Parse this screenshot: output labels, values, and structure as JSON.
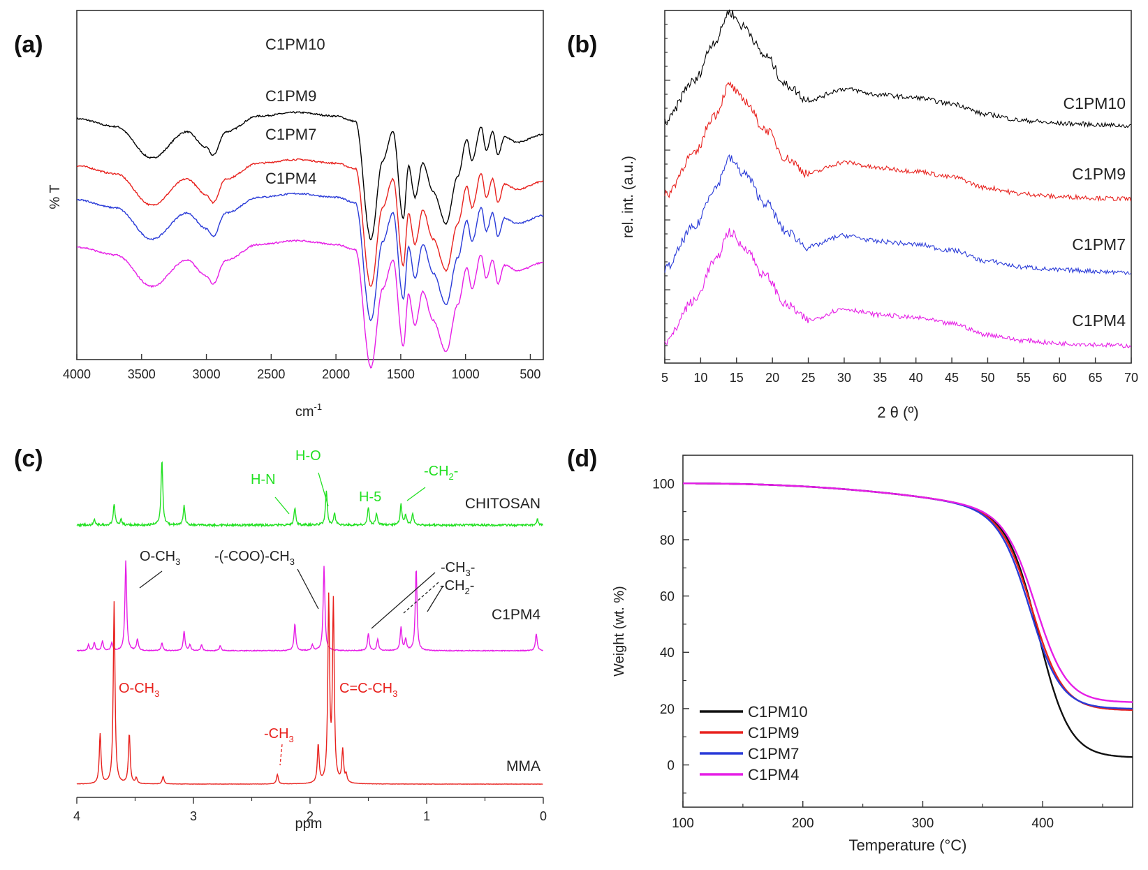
{
  "panels": [
    {
      "id": "a",
      "label": "(a)"
    },
    {
      "id": "b",
      "label": "(b)"
    },
    {
      "id": "c",
      "label": "(c)"
    },
    {
      "id": "d",
      "label": "(d)"
    }
  ],
  "chart_data": [
    {
      "panel": "(a)",
      "type": "line",
      "title": "",
      "xlabel": "cm",
      "xlabel_sup": "-1",
      "ylabel": "% T",
      "xlim": [
        4000,
        400
      ],
      "xticks": [
        4000,
        3500,
        3000,
        2500,
        2000,
        1500,
        1000,
        500
      ],
      "yticks_labeled": false,
      "offset_per_series": 0.9,
      "series": [
        {
          "name": "C1PM10",
          "color": "#000000",
          "offset": 3.0
        },
        {
          "name": "C1PM9",
          "color": "#e8221e",
          "offset": 2.1
        },
        {
          "name": "C1PM7",
          "color": "#2a3bd8",
          "offset": 1.45
        },
        {
          "name": "C1PM4",
          "color": "#e61ee6",
          "offset": 0.55
        }
      ],
      "baseline_points": [
        {
          "x": 4000,
          "y": 1.0
        },
        {
          "x": 3700,
          "y": 0.85
        },
        {
          "x": 3420,
          "y": 0.25
        },
        {
          "x": 3150,
          "y": 0.75
        },
        {
          "x": 3000,
          "y": 0.45
        },
        {
          "x": 2950,
          "y": 0.3
        },
        {
          "x": 2850,
          "y": 0.75
        },
        {
          "x": 2600,
          "y": 1.05
        },
        {
          "x": 2300,
          "y": 1.12
        },
        {
          "x": 2000,
          "y": 1.05
        },
        {
          "x": 1850,
          "y": 0.95
        },
        {
          "x": 1730,
          "y": -1.3
        },
        {
          "x": 1640,
          "y": 0.2
        },
        {
          "x": 1560,
          "y": 0.75
        },
        {
          "x": 1480,
          "y": -0.9
        },
        {
          "x": 1440,
          "y": 0.1
        },
        {
          "x": 1390,
          "y": -0.5
        },
        {
          "x": 1330,
          "y": 0.15
        },
        {
          "x": 1250,
          "y": -0.4
        },
        {
          "x": 1150,
          "y": -1.0
        },
        {
          "x": 1060,
          "y": -0.1
        },
        {
          "x": 990,
          "y": 0.6
        },
        {
          "x": 950,
          "y": 0.2
        },
        {
          "x": 880,
          "y": 0.85
        },
        {
          "x": 840,
          "y": 0.4
        },
        {
          "x": 790,
          "y": 0.75
        },
        {
          "x": 750,
          "y": 0.3
        },
        {
          "x": 700,
          "y": 0.65
        },
        {
          "x": 600,
          "y": 0.55
        },
        {
          "x": 400,
          "y": 0.7
        }
      ]
    },
    {
      "panel": "(b)",
      "type": "line",
      "title": "",
      "xlabel": "2 θ (º)",
      "ylabel": "rel. int. (a.u.)",
      "xlim": [
        5,
        70
      ],
      "xticks": [
        5,
        10,
        15,
        20,
        25,
        30,
        35,
        40,
        45,
        50,
        55,
        60,
        65,
        70
      ],
      "yticks_labeled": false,
      "series": [
        {
          "name": "C1PM10",
          "color": "#000000",
          "offset": 3.0
        },
        {
          "name": "C1PM9",
          "color": "#e8221e",
          "offset": 2.0
        },
        {
          "name": "C1PM7",
          "color": "#2a3bd8",
          "offset": 1.0
        },
        {
          "name": "C1PM4",
          "color": "#e61ee6",
          "offset": 0.0
        }
      ],
      "profile_points": [
        {
          "x": 5,
          "y": 0.05
        },
        {
          "x": 9,
          "y": 0.6
        },
        {
          "x": 12,
          "y": 1.15
        },
        {
          "x": 14,
          "y": 1.55
        },
        {
          "x": 16,
          "y": 1.35
        },
        {
          "x": 19,
          "y": 0.95
        },
        {
          "x": 22,
          "y": 0.55
        },
        {
          "x": 25,
          "y": 0.35
        },
        {
          "x": 30,
          "y": 0.5
        },
        {
          "x": 35,
          "y": 0.42
        },
        {
          "x": 40,
          "y": 0.38
        },
        {
          "x": 45,
          "y": 0.3
        },
        {
          "x": 50,
          "y": 0.15
        },
        {
          "x": 55,
          "y": 0.07
        },
        {
          "x": 60,
          "y": 0.03
        },
        {
          "x": 70,
          "y": 0.0
        }
      ]
    },
    {
      "panel": "(c)",
      "type": "line",
      "title": "",
      "xlabel": "ppm",
      "ylabel": "",
      "xlim": [
        4,
        0
      ],
      "xticks": [
        4,
        3,
        2,
        1,
        0
      ],
      "series": [
        {
          "name": "CHITOSAN",
          "color": "#22e022",
          "offset": 0.0,
          "peaks": [
            {
              "x": 3.85,
              "h": 0.3
            },
            {
              "x": 3.68,
              "h": 1.1
            },
            {
              "x": 3.62,
              "h": 0.3
            },
            {
              "x": 3.27,
              "h": 3.4
            },
            {
              "x": 3.08,
              "h": 1.0
            },
            {
              "x": 2.13,
              "h": 0.9
            },
            {
              "x": 1.86,
              "h": 1.8
            },
            {
              "x": 1.79,
              "h": 0.6
            },
            {
              "x": 1.5,
              "h": 0.9
            },
            {
              "x": 1.43,
              "h": 0.6
            },
            {
              "x": 1.22,
              "h": 1.1
            },
            {
              "x": 1.18,
              "h": 0.5
            },
            {
              "x": 1.12,
              "h": 0.6
            },
            {
              "x": 0.05,
              "h": 0.3
            }
          ]
        },
        {
          "name": "C1PM4",
          "color": "#e61ee6",
          "offset": 0.0,
          "peaks": [
            {
              "x": 3.9,
              "h": 0.3
            },
            {
              "x": 3.85,
              "h": 0.4
            },
            {
              "x": 3.78,
              "h": 0.5
            },
            {
              "x": 3.7,
              "h": 0.4
            },
            {
              "x": 3.58,
              "h": 4.7
            },
            {
              "x": 3.48,
              "h": 0.6
            },
            {
              "x": 3.27,
              "h": 0.4
            },
            {
              "x": 3.08,
              "h": 1.0
            },
            {
              "x": 3.03,
              "h": 0.3
            },
            {
              "x": 2.93,
              "h": 0.3
            },
            {
              "x": 2.77,
              "h": 0.25
            },
            {
              "x": 2.13,
              "h": 1.4
            },
            {
              "x": 1.98,
              "h": 0.3
            },
            {
              "x": 1.88,
              "h": 4.4
            },
            {
              "x": 1.5,
              "h": 0.9
            },
            {
              "x": 1.42,
              "h": 0.6
            },
            {
              "x": 1.22,
              "h": 1.2
            },
            {
              "x": 1.18,
              "h": 0.6
            },
            {
              "x": 1.09,
              "h": 4.3
            },
            {
              "x": 0.06,
              "h": 0.9
            }
          ]
        },
        {
          "name": "MMA",
          "color": "#e8221e",
          "offset": 0.0,
          "peaks": [
            {
              "x": 3.8,
              "h": 2.6
            },
            {
              "x": 3.68,
              "h": 9.5
            },
            {
              "x": 3.55,
              "h": 2.6
            },
            {
              "x": 3.49,
              "h": 0.3
            },
            {
              "x": 3.26,
              "h": 0.4
            },
            {
              "x": 2.28,
              "h": 0.5
            },
            {
              "x": 1.93,
              "h": 2.0
            },
            {
              "x": 1.84,
              "h": 9.5
            },
            {
              "x": 1.8,
              "h": 9.3
            },
            {
              "x": 1.72,
              "h": 1.7
            },
            {
              "x": 1.69,
              "h": 0.4
            }
          ]
        }
      ],
      "annotations": [
        {
          "text": "H-N",
          "color": "#22e022"
        },
        {
          "text": "H-O",
          "color": "#22e022"
        },
        {
          "text": "H-5",
          "color": "#22e022"
        },
        {
          "text": "-CH",
          "sub": "2",
          "suffix": "-",
          "color": "#22e022"
        },
        {
          "text": "O-CH",
          "sub": "3",
          "suffix": "",
          "color": "#222222"
        },
        {
          "text": "-(-COO)-CH",
          "sub": "3",
          "suffix": "",
          "color": "#222222"
        },
        {
          "text": "-CH",
          "sub": "3",
          "suffix": "-",
          "color": "#222222"
        },
        {
          "text": "-CH",
          "sub": "2",
          "suffix": "-",
          "color": "#222222"
        },
        {
          "text": "O-CH",
          "sub": "3",
          "suffix": "",
          "color": "#e8221e"
        },
        {
          "text": "C=C-CH",
          "sub": "3",
          "suffix": "",
          "color": "#e8221e"
        },
        {
          "text": "-CH",
          "sub": "3",
          "suffix": "",
          "color": "#e8221e"
        }
      ]
    },
    {
      "panel": "(d)",
      "type": "line",
      "title": "",
      "xlabel": "Temperature (°C)",
      "ylabel": "Weight (wt. %)",
      "xlim": [
        100,
        475
      ],
      "ylim": [
        -15,
        110
      ],
      "xticks": [
        100,
        200,
        300,
        400
      ],
      "yticks": [
        0,
        20,
        40,
        60,
        80,
        100
      ],
      "legend": "bottom-left",
      "series": [
        {
          "name": "C1PM10",
          "color": "#111111",
          "residue": 2.6,
          "midpoint": 397,
          "width": 13
        },
        {
          "name": "C1PM9",
          "color": "#e8221e",
          "residue": 19.4,
          "midpoint": 392,
          "width": 13
        },
        {
          "name": "C1PM7",
          "color": "#2a3bd8",
          "residue": 19.9,
          "midpoint": 390,
          "width": 13
        },
        {
          "name": "C1PM4",
          "color": "#e61ee6",
          "residue": 22.2,
          "midpoint": 395,
          "width": 13
        }
      ]
    }
  ]
}
